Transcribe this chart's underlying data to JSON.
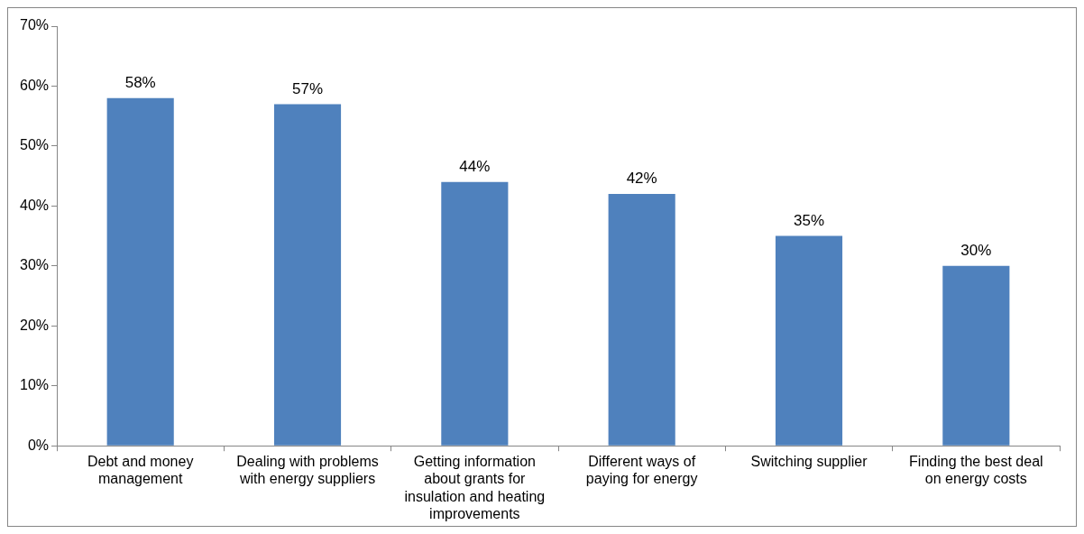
{
  "chart_data": {
    "type": "bar",
    "categories": [
      "Debt and money management",
      "Dealing with problems with energy suppliers",
      "Getting information about grants for insulation and heating improvements",
      "Different ways of paying for energy",
      "Switching supplier",
      "Finding the best deal on energy costs"
    ],
    "values": [
      58,
      57,
      44,
      42,
      35,
      30
    ],
    "value_labels": [
      "58%",
      "57%",
      "44%",
      "42%",
      "35%",
      "30%"
    ],
    "color": "#4f81bd",
    "ylim": [
      0,
      70
    ],
    "yticks": [
      {
        "value": 0,
        "label": "0%"
      },
      {
        "value": 10,
        "label": "10%"
      },
      {
        "value": 20,
        "label": "20%"
      },
      {
        "value": 30,
        "label": "30%"
      },
      {
        "value": 40,
        "label": "40%"
      },
      {
        "value": 50,
        "label": "50%"
      },
      {
        "value": 60,
        "label": "60%"
      },
      {
        "value": 70,
        "label": "70%"
      }
    ],
    "grid": false,
    "legend": false
  }
}
